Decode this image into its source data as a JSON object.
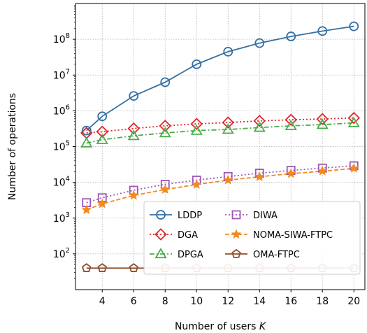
{
  "chart_data": {
    "type": "line",
    "xlabel": "Number of users",
    "xlabel_var": "K",
    "ylabel": "Number of operations",
    "yscale": "log",
    "xlim": [
      2.3,
      20.7
    ],
    "ylim": [
      10,
      1000000000
    ],
    "xticks": [
      4,
      6,
      8,
      10,
      12,
      14,
      16,
      18,
      20
    ],
    "yticks": [
      {
        "value": 100,
        "base": "10",
        "exp": "2"
      },
      {
        "value": 1000,
        "base": "10",
        "exp": "3"
      },
      {
        "value": 10000,
        "base": "10",
        "exp": "4"
      },
      {
        "value": 100000,
        "base": "10",
        "exp": "5"
      },
      {
        "value": 1000000,
        "base": "10",
        "exp": "6"
      },
      {
        "value": 10000000,
        "base": "10",
        "exp": "7"
      },
      {
        "value": 100000000,
        "base": "10",
        "exp": "8"
      }
    ],
    "grid": true,
    "legend_position": "lower-right",
    "series": [
      {
        "name": "LDDP",
        "color": "#3470a3",
        "marker": "circle",
        "linestyle": "solid",
        "x": [
          3,
          4,
          6,
          8,
          10,
          12,
          14,
          16,
          18,
          20
        ],
        "y": [
          280000,
          700000,
          2600000,
          6300000,
          20000000,
          45000000,
          78000000,
          120000000,
          170000000,
          230000000
        ]
      },
      {
        "name": "DGA",
        "color": "#e0262a",
        "marker": "diamond",
        "linestyle": "dotted",
        "x": [
          3,
          4,
          6,
          8,
          10,
          12,
          14,
          16,
          18,
          20
        ],
        "y": [
          240000,
          260000,
          320000,
          380000,
          430000,
          470000,
          520000,
          560000,
          590000,
          630000
        ]
      },
      {
        "name": "DPGA",
        "color": "#4cab4c",
        "marker": "triangle",
        "linestyle": "dashdot",
        "x": [
          3,
          4,
          6,
          8,
          10,
          12,
          14,
          16,
          18,
          20
        ],
        "y": [
          125000,
          155000,
          200000,
          240000,
          280000,
          300000,
          340000,
          380000,
          410000,
          460000
        ]
      },
      {
        "name": "DIWA",
        "color": "#9f56b8",
        "marker": "square",
        "linestyle": "dotted",
        "x": [
          3,
          4,
          6,
          8,
          10,
          12,
          14,
          16,
          18,
          20
        ],
        "y": [
          2700,
          3700,
          6000,
          8800,
          11500,
          14500,
          18000,
          21500,
          25000,
          29000
        ]
      },
      {
        "name": "NOMA-SIWA-FTPC",
        "color": "#f28a1e",
        "marker": "star",
        "linestyle": "dashed",
        "x": [
          3,
          4,
          6,
          8,
          10,
          12,
          14,
          16,
          18,
          20
        ],
        "y": [
          1700,
          2500,
          4300,
          6300,
          8700,
          11500,
          14300,
          17500,
          20500,
          24500
        ]
      },
      {
        "name": "OMA-FTPC",
        "color": "#8d4e2a",
        "marker": "pentagon",
        "linestyle": "solid",
        "x": [
          3,
          4,
          6,
          8,
          10,
          12,
          14,
          16,
          18,
          20
        ],
        "y": [
          40,
          40,
          40,
          40,
          40,
          40,
          40,
          40,
          40,
          40
        ]
      }
    ],
    "legend": {
      "columns": [
        [
          "LDDP",
          "DGA",
          "DPGA"
        ],
        [
          "DIWA",
          "NOMA-SIWA-FTPC",
          "OMA-FTPC"
        ]
      ]
    }
  }
}
